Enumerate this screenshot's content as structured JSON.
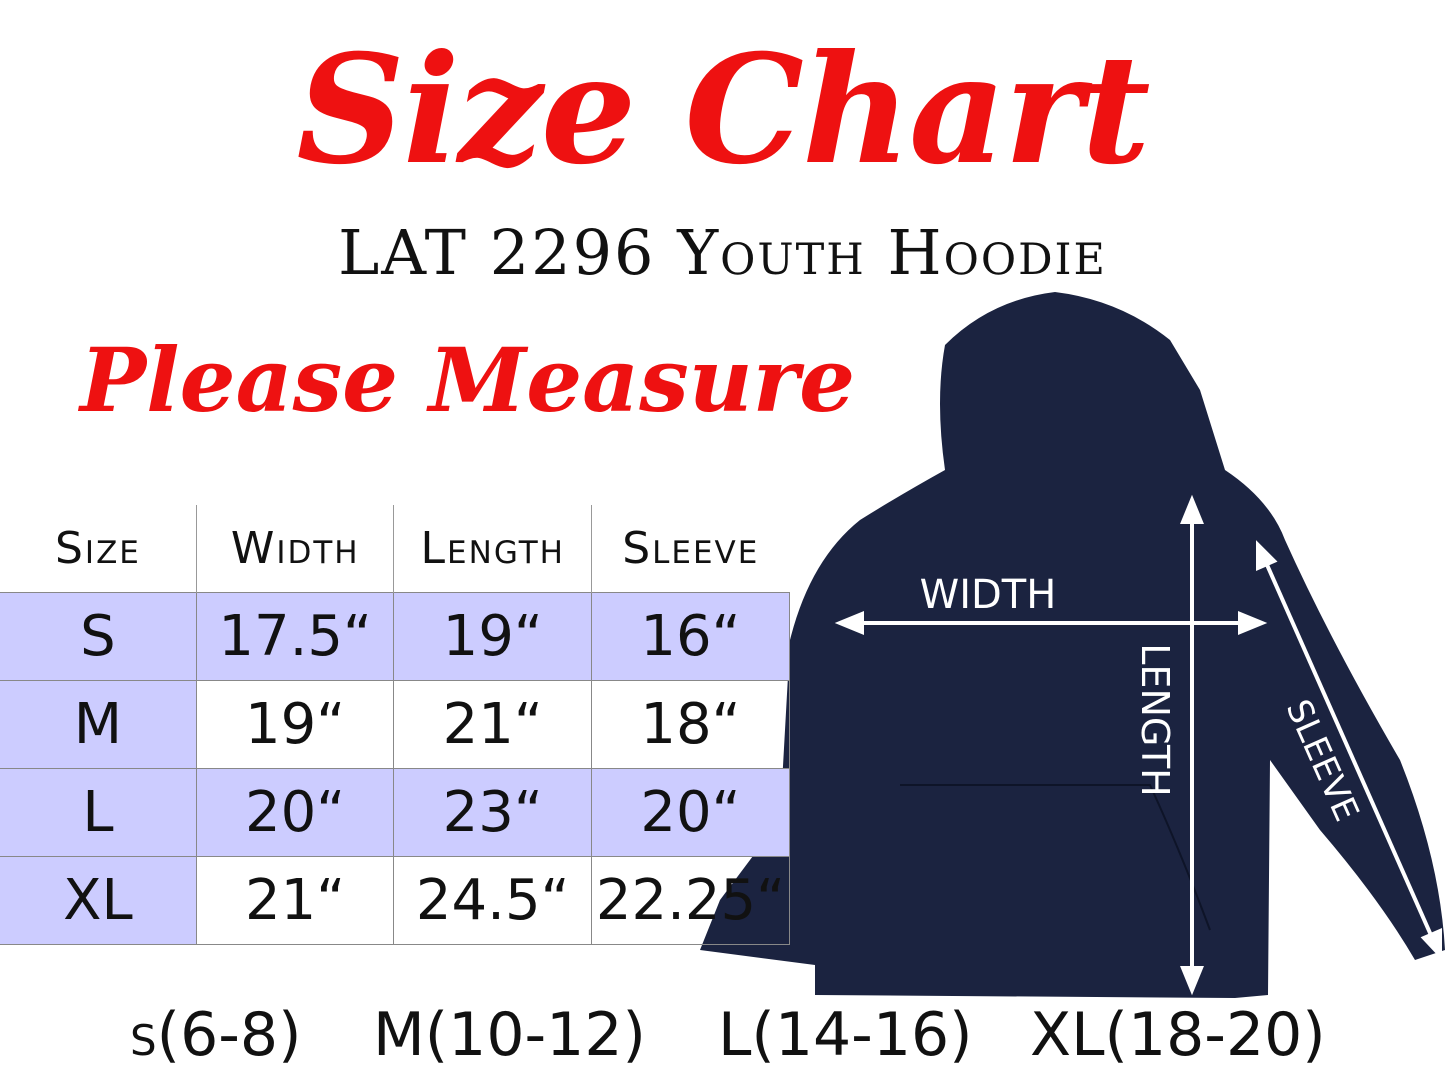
{
  "title": "Size Chart",
  "subtitle": "LAT 2296 Youth Hoodie",
  "instruction": "Please Measure",
  "table": {
    "headers": [
      "Size",
      "Width",
      "Length",
      "Sleeve"
    ],
    "rows": [
      [
        "S",
        "17.5“",
        "19“",
        "16“"
      ],
      [
        "M",
        "19“",
        "21“",
        "18“"
      ],
      [
        "L",
        "20“",
        "23“",
        "20“"
      ],
      [
        "XL",
        "21“",
        "24.5“",
        "22.25“"
      ]
    ]
  },
  "age_ranges": [
    "s(6-8)",
    "M(10-12)",
    "L(14-16)",
    "XL(18-20)"
  ],
  "diagram_labels": {
    "width": "WIDTH",
    "length": "LENGTH",
    "sleeve": "SLEEVE"
  },
  "colors": {
    "title_red": "#ee1111",
    "row_highlight": "#ccccff",
    "hoodie_navy": "#1b2340"
  }
}
